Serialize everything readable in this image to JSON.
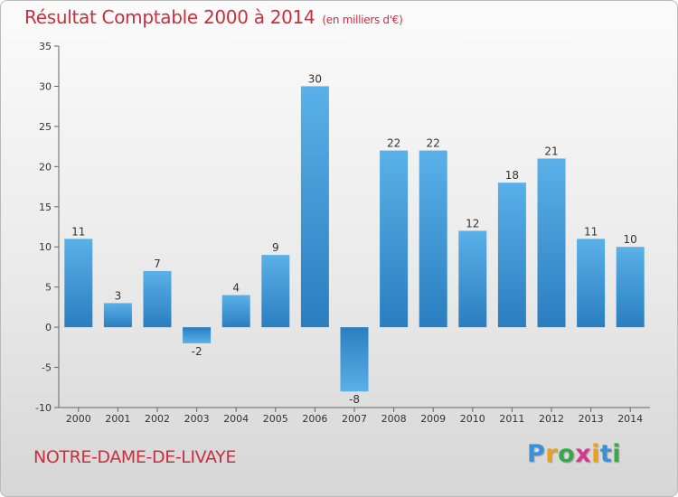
{
  "header": {
    "title": "Résultat Comptable 2000 à 2014",
    "unit": "(en milliers d'€)"
  },
  "footer": {
    "town": "NOTRE-DAME-DE-LIVAYE",
    "logo_letters": [
      "P",
      "r",
      "o",
      "x",
      "i",
      "t",
      "i"
    ],
    "logo_colors": [
      "#3b8fd4",
      "#e8a020",
      "#3aa84a",
      "#d23a8c",
      "#e8a020",
      "#3b8fd4",
      "#3aa84a"
    ]
  },
  "colors": {
    "title": "#c8303f",
    "bar_light": "#5ab0e8",
    "bar_dark": "#2a7ec0"
  },
  "chart_data": {
    "type": "bar",
    "title": "Résultat Comptable 2000 à 2014",
    "xlabel": "",
    "ylabel": "",
    "categories": [
      "2000",
      "2001",
      "2002",
      "2003",
      "2004",
      "2005",
      "2006",
      "2007",
      "2008",
      "2009",
      "2010",
      "2011",
      "2012",
      "2013",
      "2014"
    ],
    "values": [
      11,
      3,
      7,
      -2,
      4,
      9,
      30,
      -8,
      22,
      22,
      12,
      18,
      21,
      11,
      10
    ],
    "ylim": [
      -10,
      35
    ],
    "yticks": [
      -10,
      -5,
      0,
      5,
      10,
      15,
      20,
      25,
      30,
      35
    ],
    "grid": false,
    "legend": "none"
  }
}
